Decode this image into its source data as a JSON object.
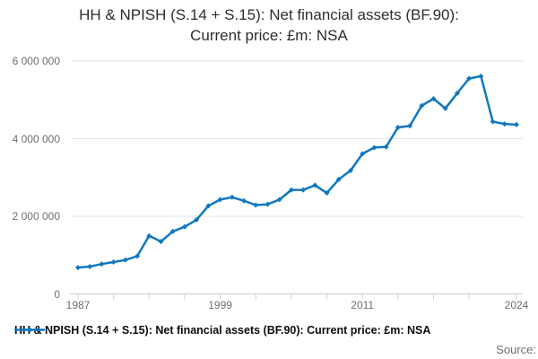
{
  "title": {
    "line1": "HH & NPISH (S.14 + S.15): Net financial assets (BF.90):",
    "line2": "Current price: £m: NSA"
  },
  "legend": {
    "label": "HH & NPISH (S.14 + S.15): Net financial assets (BF.90): Current price: £m: NSA"
  },
  "source": {
    "label": "Source:"
  },
  "colors": {
    "line": "#1178be",
    "grid": "#e6e6e6",
    "axis": "#c7cdd9",
    "tick_text": "#6e6e6e",
    "title_text": "#2d2d2d",
    "legend_text": "#0d0d0d",
    "source_text": "#6e6e6e"
  },
  "chart_data": {
    "type": "line",
    "title": "HH & NPISH (S.14 + S.15): Net financial assets (BF.90): Current price: £m: NSA",
    "series_name": "HH & NPISH (S.14 + S.15): Net financial assets (BF.90): Current price: £m: NSA",
    "x": [
      1987,
      1988,
      1989,
      1990,
      1991,
      1992,
      1993,
      1994,
      1995,
      1996,
      1997,
      1998,
      1999,
      2000,
      2001,
      2002,
      2003,
      2004,
      2005,
      2006,
      2007,
      2008,
      2009,
      2010,
      2011,
      2012,
      2013,
      2014,
      2015,
      2016,
      2017,
      2018,
      2019,
      2020,
      2021,
      2022,
      2023,
      2024
    ],
    "values": [
      680000,
      705000,
      770000,
      820000,
      875000,
      975000,
      1495000,
      1350000,
      1610000,
      1730000,
      1910000,
      2270000,
      2430000,
      2490000,
      2400000,
      2290000,
      2310000,
      2430000,
      2680000,
      2680000,
      2800000,
      2600000,
      2950000,
      3180000,
      3610000,
      3770000,
      3790000,
      4290000,
      4330000,
      4850000,
      5030000,
      4780000,
      5170000,
      5550000,
      5610000,
      4440000,
      4380000,
      4360000
    ],
    "xlabel": "",
    "ylabel": "",
    "xlim": [
      1987,
      2024
    ],
    "ylim": [
      0,
      6000000
    ],
    "grid": "horizontal",
    "legend_position": "bottom-left",
    "marker": "diamond",
    "yticks": [
      {
        "value": 0,
        "label": "0"
      },
      {
        "value": 2000000,
        "label": "2 000 000"
      },
      {
        "value": 4000000,
        "label": "4 000 000"
      },
      {
        "value": 6000000,
        "label": "6 000 000"
      }
    ],
    "xticks": [
      1987,
      1990,
      1993,
      1996,
      1999,
      2002,
      2005,
      2008,
      2011,
      2014,
      2017,
      2020,
      2024
    ],
    "xtick_labels": [
      {
        "year": 1987,
        "label": "1987"
      },
      {
        "year": 1999,
        "label": "1999"
      },
      {
        "year": 2011,
        "label": "2011"
      },
      {
        "year": 2024,
        "label": "2024"
      }
    ]
  }
}
